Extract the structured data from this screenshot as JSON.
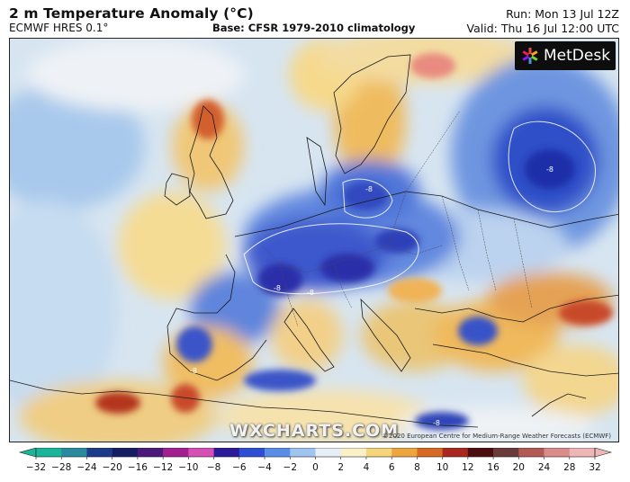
{
  "header": {
    "title": "2 m Temperature Anomaly (°C)",
    "model": "ECMWF HRES 0.1°",
    "base": "Base: CFSR 1979-2010 climatology",
    "run": "Run: Mon 13 Jul 12Z",
    "valid": "Valid: Thu 16 Jul 12:00 UTC"
  },
  "branding": {
    "logo_text": "MetDesk",
    "watermark": "WXCHARTS.COM",
    "copyright": "©2020 European Centre for Medium-Range Weather Forecasts (ECMWF)"
  },
  "map": {
    "region": "Europe",
    "contour_labels": [
      "-8",
      "-8",
      "-8",
      "-8",
      "-8",
      "-8"
    ],
    "colors": {
      "ocean_base": "#cfe0ef",
      "cold_strong": "#1f2fb0",
      "cold_mid": "#4f7fe0",
      "cold_light": "#a7c8ef",
      "neutral": "#eef3f7",
      "warm_light": "#f5d98a",
      "warm_mid": "#eaa54a",
      "warm_strong": "#c6461f",
      "extreme_cold": "#7a2a9a"
    }
  },
  "colorbar": {
    "unit": "°C",
    "ticks": [
      "−32",
      "−28",
      "−24",
      "−20",
      "−16",
      "−12",
      "−10",
      "−8",
      "−6",
      "−4",
      "−2",
      "0",
      "2",
      "4",
      "6",
      "8",
      "10",
      "12",
      "16",
      "20",
      "24",
      "28",
      "32"
    ],
    "colors": [
      "#1bb59a",
      "#2a8a9d",
      "#1e3a8a",
      "#161e63",
      "#4c1a7a",
      "#a21f8f",
      "#d64fb5",
      "#2b1b9a",
      "#2e4fd4",
      "#5a8ee6",
      "#9fc4ef",
      "#e6eef6",
      "#fbf1c8",
      "#f6d47c",
      "#eda53f",
      "#d66a25",
      "#a8271e",
      "#4a0e10",
      "#6b3a3a",
      "#b35a55",
      "#d98c8a",
      "#eeb6b6"
    ]
  }
}
